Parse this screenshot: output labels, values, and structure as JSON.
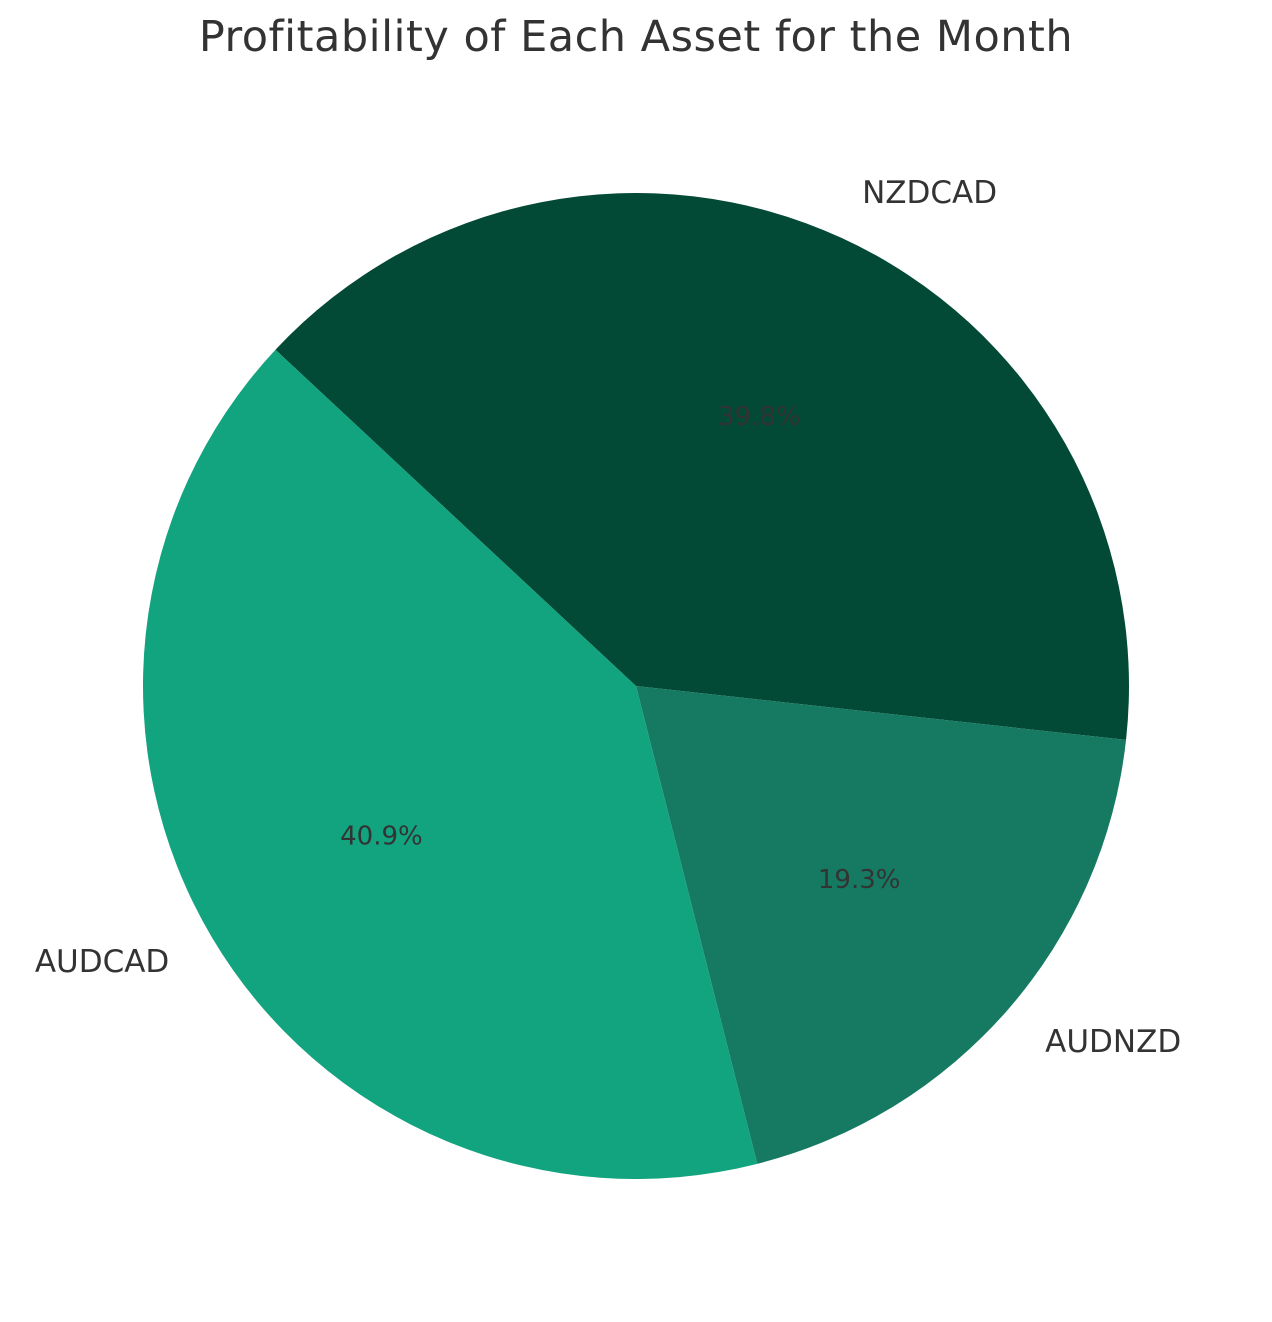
{
  "chart_data": {
    "type": "pie",
    "title": "Profitability of Each Asset for the Month",
    "slices": [
      {
        "label": "NZDCAD",
        "value": 39.8,
        "pct_label": "39.8%",
        "color": "#034a36"
      },
      {
        "label": "AUDNZD",
        "value": 19.3,
        "pct_label": "19.3%",
        "color": "#167a62"
      },
      {
        "label": "AUDCAD",
        "value": 40.9,
        "pct_label": "40.9%",
        "color": "#12a37f"
      }
    ],
    "text_color": "#333333"
  }
}
